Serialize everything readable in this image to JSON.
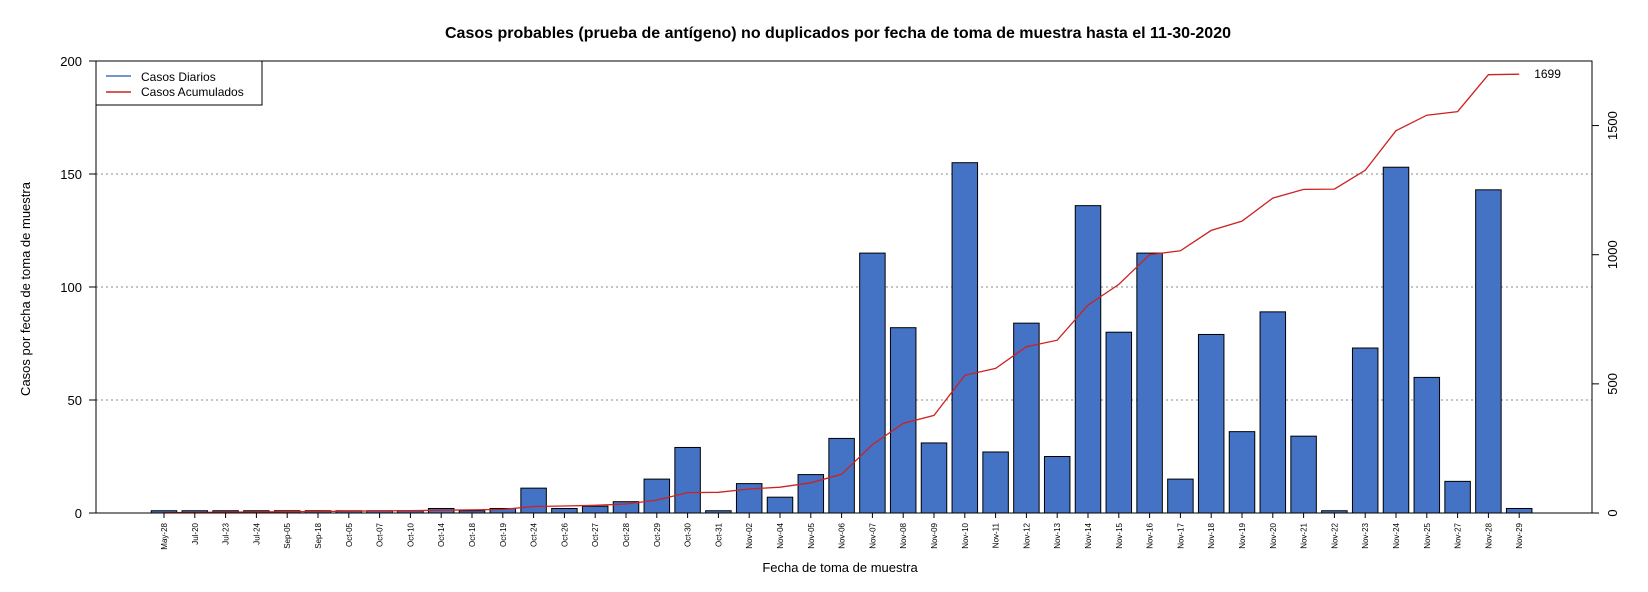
{
  "chart_data": {
    "type": "bar",
    "title": "Casos probables (prueba de antígeno) no duplicados por fecha de toma de muestra hasta el 11-30-2020",
    "xlabel": "Fecha de toma de muestra",
    "ylabel": "Casos por fecha de toma de muestra",
    "ylim": [
      0,
      200
    ],
    "yticks": [
      0,
      50,
      100,
      150,
      200
    ],
    "y2lim": [
      0,
      1750
    ],
    "y2ticks": [
      0,
      500,
      1000,
      1500
    ],
    "grid": "horizontal dotted",
    "legend_position": "top-left",
    "categories": [
      "May-28",
      "Jul-20",
      "Jul-23",
      "Jul-24",
      "Sep-05",
      "Sep-18",
      "Oct-05",
      "Oct-07",
      "Oct-10",
      "Oct-14",
      "Oct-18",
      "Oct-19",
      "Oct-24",
      "Oct-26",
      "Oct-27",
      "Oct-28",
      "Oct-29",
      "Oct-30",
      "Oct-31",
      "Nov-02",
      "Nov-04",
      "Nov-05",
      "Nov-06",
      "Nov-07",
      "Nov-08",
      "Nov-09",
      "Nov-10",
      "Nov-11",
      "Nov-12",
      "Nov-13",
      "Nov-14",
      "Nov-15",
      "Nov-16",
      "Nov-17",
      "Nov-18",
      "Nov-19",
      "Nov-20",
      "Nov-21",
      "Nov-22",
      "Nov-23",
      "Nov-24",
      "Nov-25",
      "Nov-27",
      "Nov-28",
      "Nov-29"
    ],
    "series": [
      {
        "name": "Casos Diarios",
        "type": "bar",
        "axis": "left",
        "color": "#4472C4",
        "values": [
          1,
          1,
          1,
          1,
          1,
          1,
          1,
          1,
          1,
          2,
          1,
          2,
          11,
          2,
          3,
          5,
          15,
          29,
          1,
          13,
          7,
          17,
          33,
          115,
          82,
          31,
          155,
          27,
          84,
          25,
          136,
          80,
          115,
          15,
          79,
          36,
          89,
          34,
          1,
          73,
          153,
          60,
          14,
          143,
          2
        ]
      },
      {
        "name": "Casos Acumulados",
        "type": "line",
        "axis": "right",
        "color": "#CC2222",
        "values": [
          1,
          2,
          3,
          4,
          5,
          6,
          7,
          8,
          9,
          11,
          12,
          14,
          25,
          27,
          30,
          35,
          50,
          79,
          80,
          93,
          100,
          117,
          150,
          265,
          347,
          378,
          533,
          560,
          644,
          669,
          805,
          885,
          1000,
          1015,
          1094,
          1130,
          1219,
          1253,
          1254,
          1327,
          1480,
          1540,
          1554,
          1697,
          1699
        ]
      }
    ],
    "end_label": "1699"
  }
}
